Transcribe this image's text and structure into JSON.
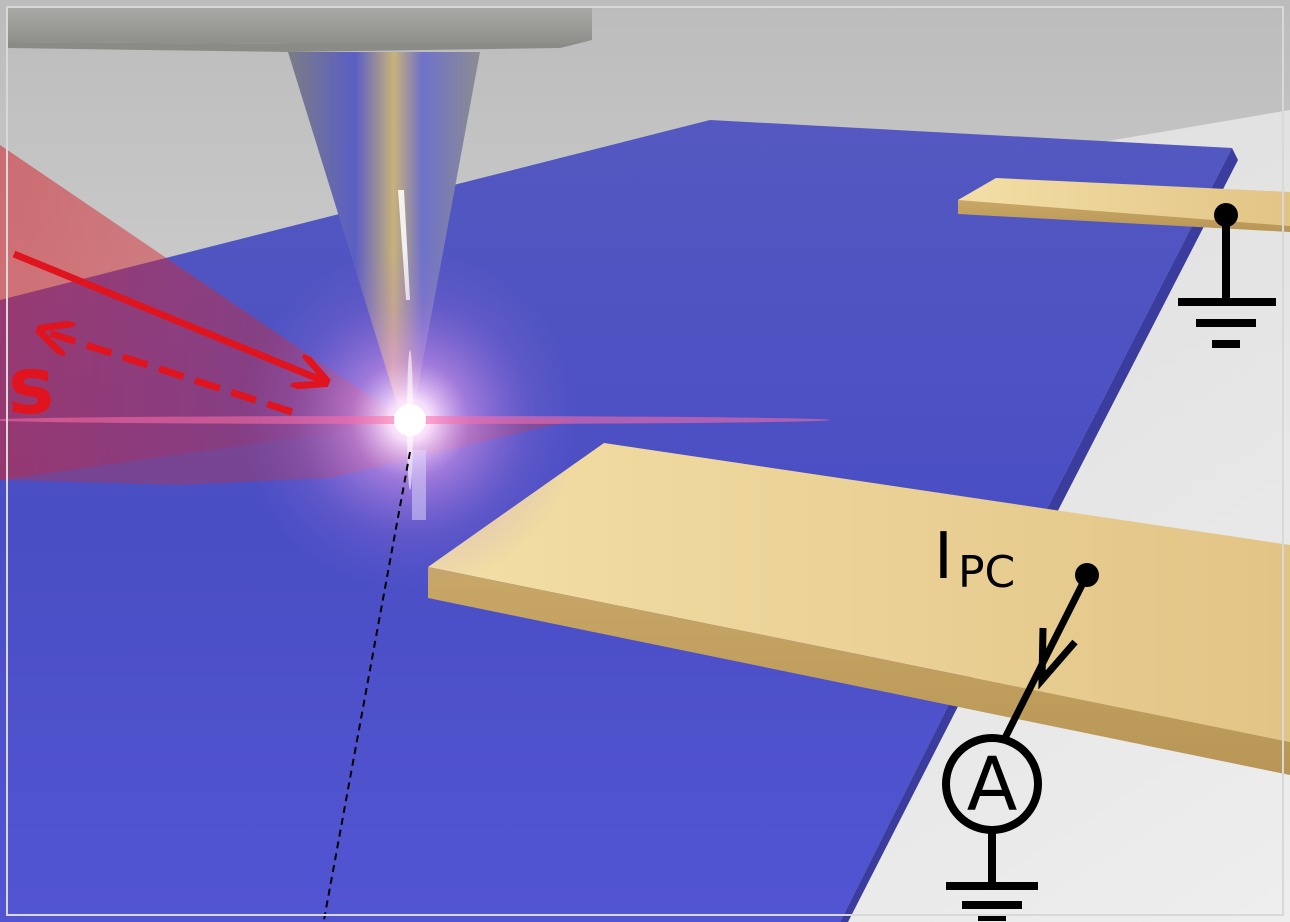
{
  "labels": {
    "signal_label": "s",
    "current_symbol": "I",
    "current_subscript": "PC",
    "ammeter_label": "A"
  },
  "colors": {
    "background": "#cfcfcf",
    "substrate": "#4b4fc2",
    "gold_electrode": "#e8c98a",
    "laser": "#e0141e",
    "circuit": "#000000",
    "tip": "#a9a9a9"
  }
}
